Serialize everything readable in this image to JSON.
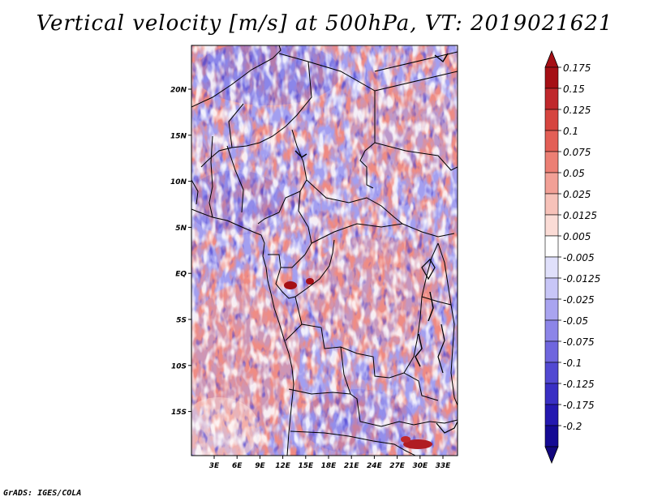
{
  "title": "Vertical velocity [m/s] at 500hPa, VT: 2019021621",
  "credit": "GrADS: IGES/COLA",
  "map": {
    "region": "Central Africa",
    "field": "Vertical velocity",
    "units": "m/s",
    "level": "500hPa",
    "valid_time": "2019021621",
    "lat_labels": [
      "20N",
      "15N",
      "10N",
      "5N",
      "EQ",
      "5S",
      "10S",
      "15S"
    ],
    "lon_labels": [
      "3E",
      "6E",
      "9E",
      "12E",
      "15E",
      "18E",
      "21E",
      "24E",
      "27E",
      "30E",
      "33E"
    ]
  },
  "colorbar": {
    "labels": [
      "0.175",
      "0.15",
      "0.125",
      "0.1",
      "0.075",
      "0.05",
      "0.025",
      "0.0125",
      "0.005",
      "-0.005",
      "-0.0125",
      "-0.025",
      "-0.05",
      "-0.075",
      "-0.1",
      "-0.125",
      "-0.175",
      "-0.2"
    ],
    "colors": [
      "#a50f15",
      "#c0282c",
      "#d6453f",
      "#e35f56",
      "#ec7f74",
      "#f2a096",
      "#f7c2b9",
      "#fbdcd6",
      "#ffffff",
      "#e0e0fb",
      "#c8c6f7",
      "#a9a4f0",
      "#8c85e8",
      "#6f66de",
      "#5249d2",
      "#392fc4",
      "#2418b0",
      "#150a94"
    ],
    "top_arrow_color": "#a50f15",
    "bottom_arrow_color": "#12077e"
  },
  "colors": {
    "sink_red": "#e8665e",
    "rise_blue": "#6f6ae6",
    "border": "#000000"
  }
}
